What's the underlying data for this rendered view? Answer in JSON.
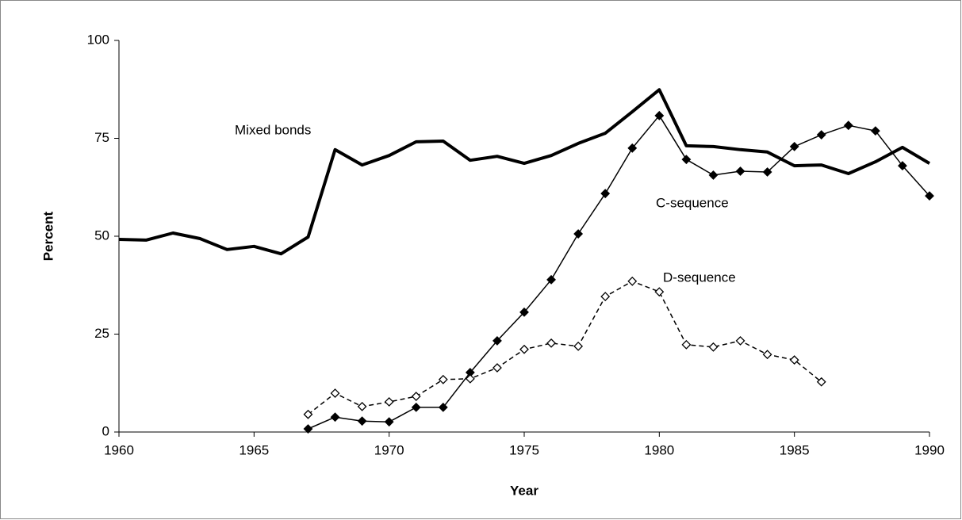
{
  "chart_data": {
    "type": "line",
    "x_label": "Year",
    "y_label": "Percent",
    "x": [
      1960,
      1961,
      1962,
      1963,
      1964,
      1965,
      1966,
      1967,
      1968,
      1969,
      1970,
      1971,
      1972,
      1973,
      1974,
      1975,
      1976,
      1977,
      1978,
      1979,
      1980,
      1981,
      1982,
      1983,
      1984,
      1985,
      1986,
      1987,
      1988,
      1989,
      1990
    ],
    "xlim": [
      1960,
      1990
    ],
    "xticks": [
      1960,
      1965,
      1970,
      1975,
      1980,
      1985,
      1990
    ],
    "ylim": [
      0,
      100
    ],
    "yticks": [
      0,
      25,
      50,
      75,
      100
    ],
    "grid": false,
    "series": [
      {
        "name": "Mixed bonds",
        "color": "#000000",
        "line_width": 4,
        "dash": false,
        "marker": "none",
        "values": [
          49.2,
          49.0,
          50.8,
          49.4,
          46.6,
          47.4,
          45.5,
          49.8,
          72.1,
          68.2,
          70.6,
          74.1,
          74.3,
          69.4,
          70.4,
          68.6,
          70.6,
          73.7,
          76.3,
          81.8,
          87.4,
          73.1,
          72.9,
          72.1,
          71.5,
          68.0,
          68.2,
          66.0,
          69.0,
          72.7,
          68.6
        ]
      },
      {
        "name": "C-sequence",
        "color": "#000000",
        "line_width": 1.5,
        "dash": false,
        "marker": "filled-diamond",
        "values": [
          null,
          null,
          null,
          null,
          null,
          null,
          null,
          0.8,
          3.8,
          2.8,
          2.6,
          6.3,
          6.3,
          15.2,
          23.3,
          30.6,
          38.9,
          50.6,
          60.9,
          72.5,
          80.8,
          69.6,
          65.6,
          66.6,
          66.4,
          72.9,
          75.9,
          78.3,
          76.9,
          68.0,
          60.3
        ]
      },
      {
        "name": "D-sequence",
        "color": "#000000",
        "line_width": 1.5,
        "dash": true,
        "marker": "open-diamond",
        "values": [
          null,
          null,
          null,
          null,
          null,
          null,
          null,
          4.5,
          9.9,
          6.5,
          7.7,
          9.1,
          13.4,
          13.6,
          16.4,
          21.1,
          22.7,
          21.9,
          34.6,
          38.5,
          35.8,
          22.3,
          21.7,
          23.3,
          19.8,
          18.4,
          12.8,
          null,
          null,
          null,
          null
        ]
      }
    ]
  }
}
